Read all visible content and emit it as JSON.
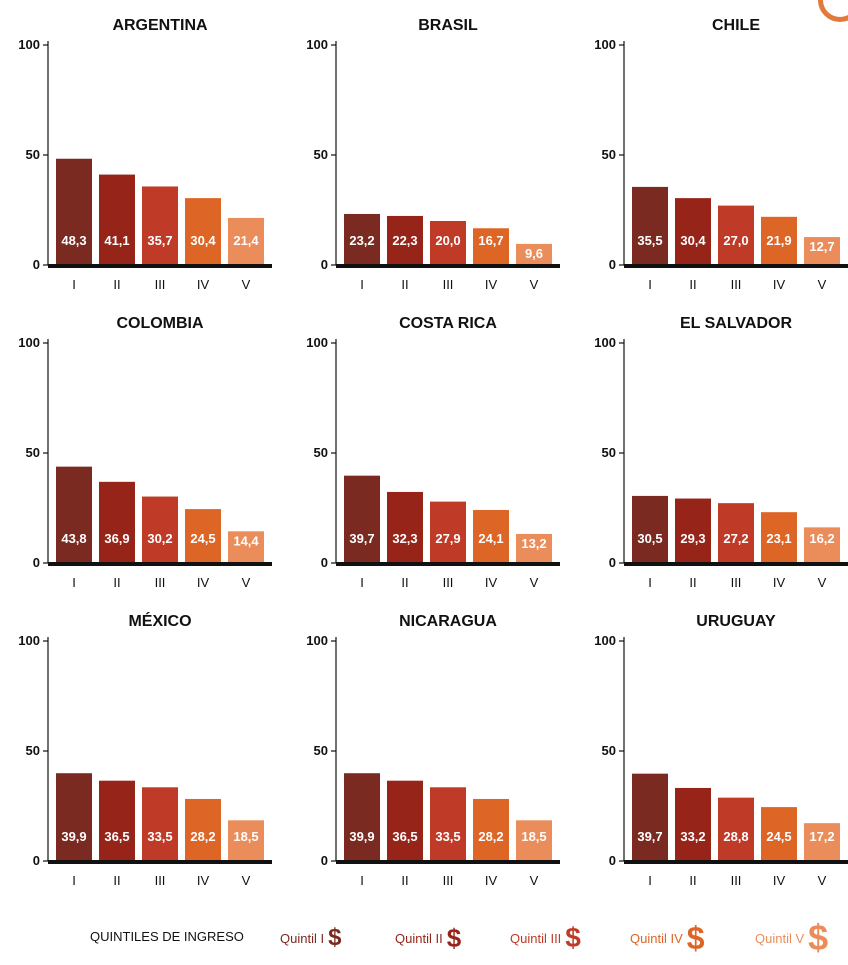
{
  "chart_data": {
    "type": "bar",
    "layout": "small-multiples-3x3",
    "categories": [
      "I",
      "II",
      "III",
      "IV",
      "V"
    ],
    "ylim": [
      0,
      100
    ],
    "yticks": [
      0,
      50,
      100
    ],
    "series_colors": [
      "#7a2a20",
      "#962419",
      "#bf3b28",
      "#dd6526",
      "#ea8d5b"
    ],
    "panels": [
      {
        "title": "ARGENTINA",
        "values": [
          48.3,
          41.1,
          35.7,
          30.4,
          21.4
        ],
        "labels": [
          "48,3",
          "41,1",
          "35,7",
          "30,4",
          "21,4"
        ]
      },
      {
        "title": "BRASIL",
        "values": [
          23.2,
          22.3,
          20.0,
          16.7,
          9.6
        ],
        "labels": [
          "23,2",
          "22,3",
          "20,0",
          "16,7",
          "9,6"
        ]
      },
      {
        "title": "CHILE",
        "values": [
          35.5,
          30.4,
          27.0,
          21.9,
          12.7
        ],
        "labels": [
          "35,5",
          "30,4",
          "27,0",
          "21,9",
          "12,7"
        ]
      },
      {
        "title": "COLOMBIA",
        "values": [
          43.8,
          36.9,
          30.2,
          24.5,
          14.4
        ],
        "labels": [
          "43,8",
          "36,9",
          "30,2",
          "24,5",
          "14,4"
        ]
      },
      {
        "title": "COSTA RICA",
        "values": [
          39.7,
          32.3,
          27.9,
          24.1,
          13.2
        ],
        "labels": [
          "39,7",
          "32,3",
          "27,9",
          "24,1",
          "13,2"
        ]
      },
      {
        "title": "EL SALVADOR",
        "values": [
          30.5,
          29.3,
          27.2,
          23.1,
          16.2
        ],
        "labels": [
          "30,5",
          "29,3",
          "27,2",
          "23,1",
          "16,2"
        ]
      },
      {
        "title": "MÉXICO",
        "values": [
          39.9,
          36.5,
          33.5,
          28.2,
          18.5
        ],
        "labels": [
          "39,9",
          "36,5",
          "33,5",
          "28,2",
          "18,5"
        ]
      },
      {
        "title": "NICARAGUA",
        "values": [
          39.9,
          36.5,
          33.5,
          28.2,
          18.5
        ],
        "labels": [
          "39,9",
          "36,5",
          "33,5",
          "28,2",
          "18,5"
        ]
      },
      {
        "title": "URUGUAY",
        "values": [
          39.7,
          33.2,
          28.8,
          24.5,
          17.2
        ],
        "labels": [
          "39,7",
          "33,2",
          "28,8",
          "24,5",
          "17,2"
        ]
      }
    ],
    "legend": {
      "title": "QUINTILES DE INGRESO",
      "placement": "bottom",
      "symbol": "$",
      "items": [
        "Quintil I",
        "Quintil II",
        "Quintil III",
        "Quintil IV",
        "Quintil V"
      ]
    }
  }
}
